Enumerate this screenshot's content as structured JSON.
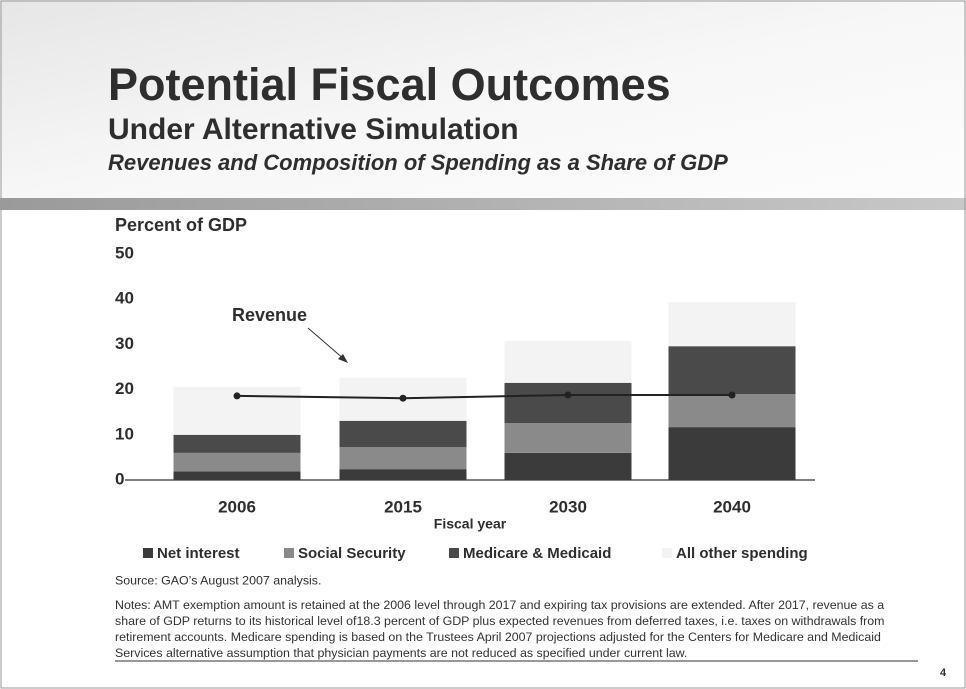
{
  "header": {
    "title": "Potential Fiscal Outcomes",
    "subtitle": "Under Alternative Simulation",
    "subtitle2": "Revenues and Composition of Spending as a Share of GDP"
  },
  "chart_data": {
    "type": "stacked-bar",
    "y_label": "Percent of GDP",
    "x_label": "Fiscal year",
    "categories": [
      "2006",
      "2015",
      "2030",
      "2040"
    ],
    "series": [
      {
        "name": "Net interest",
        "color": "#3b3b3b",
        "values": [
          1.9,
          2.4,
          6.0,
          11.7
        ]
      },
      {
        "name": "Social Security",
        "color": "#8a8a8a",
        "values": [
          4.1,
          4.9,
          6.6,
          7.3
        ]
      },
      {
        "name": "Medicare & Medicaid",
        "color": "#4a4a4a",
        "values": [
          4.0,
          5.8,
          8.9,
          10.6
        ]
      },
      {
        "name": "All other spending",
        "color": "#f3f3f3",
        "values": [
          10.6,
          9.5,
          9.3,
          9.8
        ]
      }
    ],
    "revenue": {
      "name": "Revenue",
      "color": "#222222",
      "values": [
        18.6,
        18.1,
        18.8,
        18.8
      ]
    },
    "ylim": [
      0,
      50
    ],
    "yticks": [
      0,
      10,
      20,
      30,
      40,
      50
    ]
  },
  "footer": {
    "source": "Source:  GAO’s August 2007 analysis.",
    "notes": "Notes: AMT exemption amount is retained at the 2006 level through 2017 and expiring tax provisions are extended.  After 2017, revenue as a share of GDP returns to its historical level of18.3 percent of GDP plus expected revenues from deferred taxes, i.e. taxes on withdrawals from retirement accounts. Medicare spending is based on the Trustees April 2007 projections adjusted for the Centers for Medicare and Medicaid Services alternative assumption that physician payments are not reduced as specified under current law.",
    "page": "4"
  }
}
